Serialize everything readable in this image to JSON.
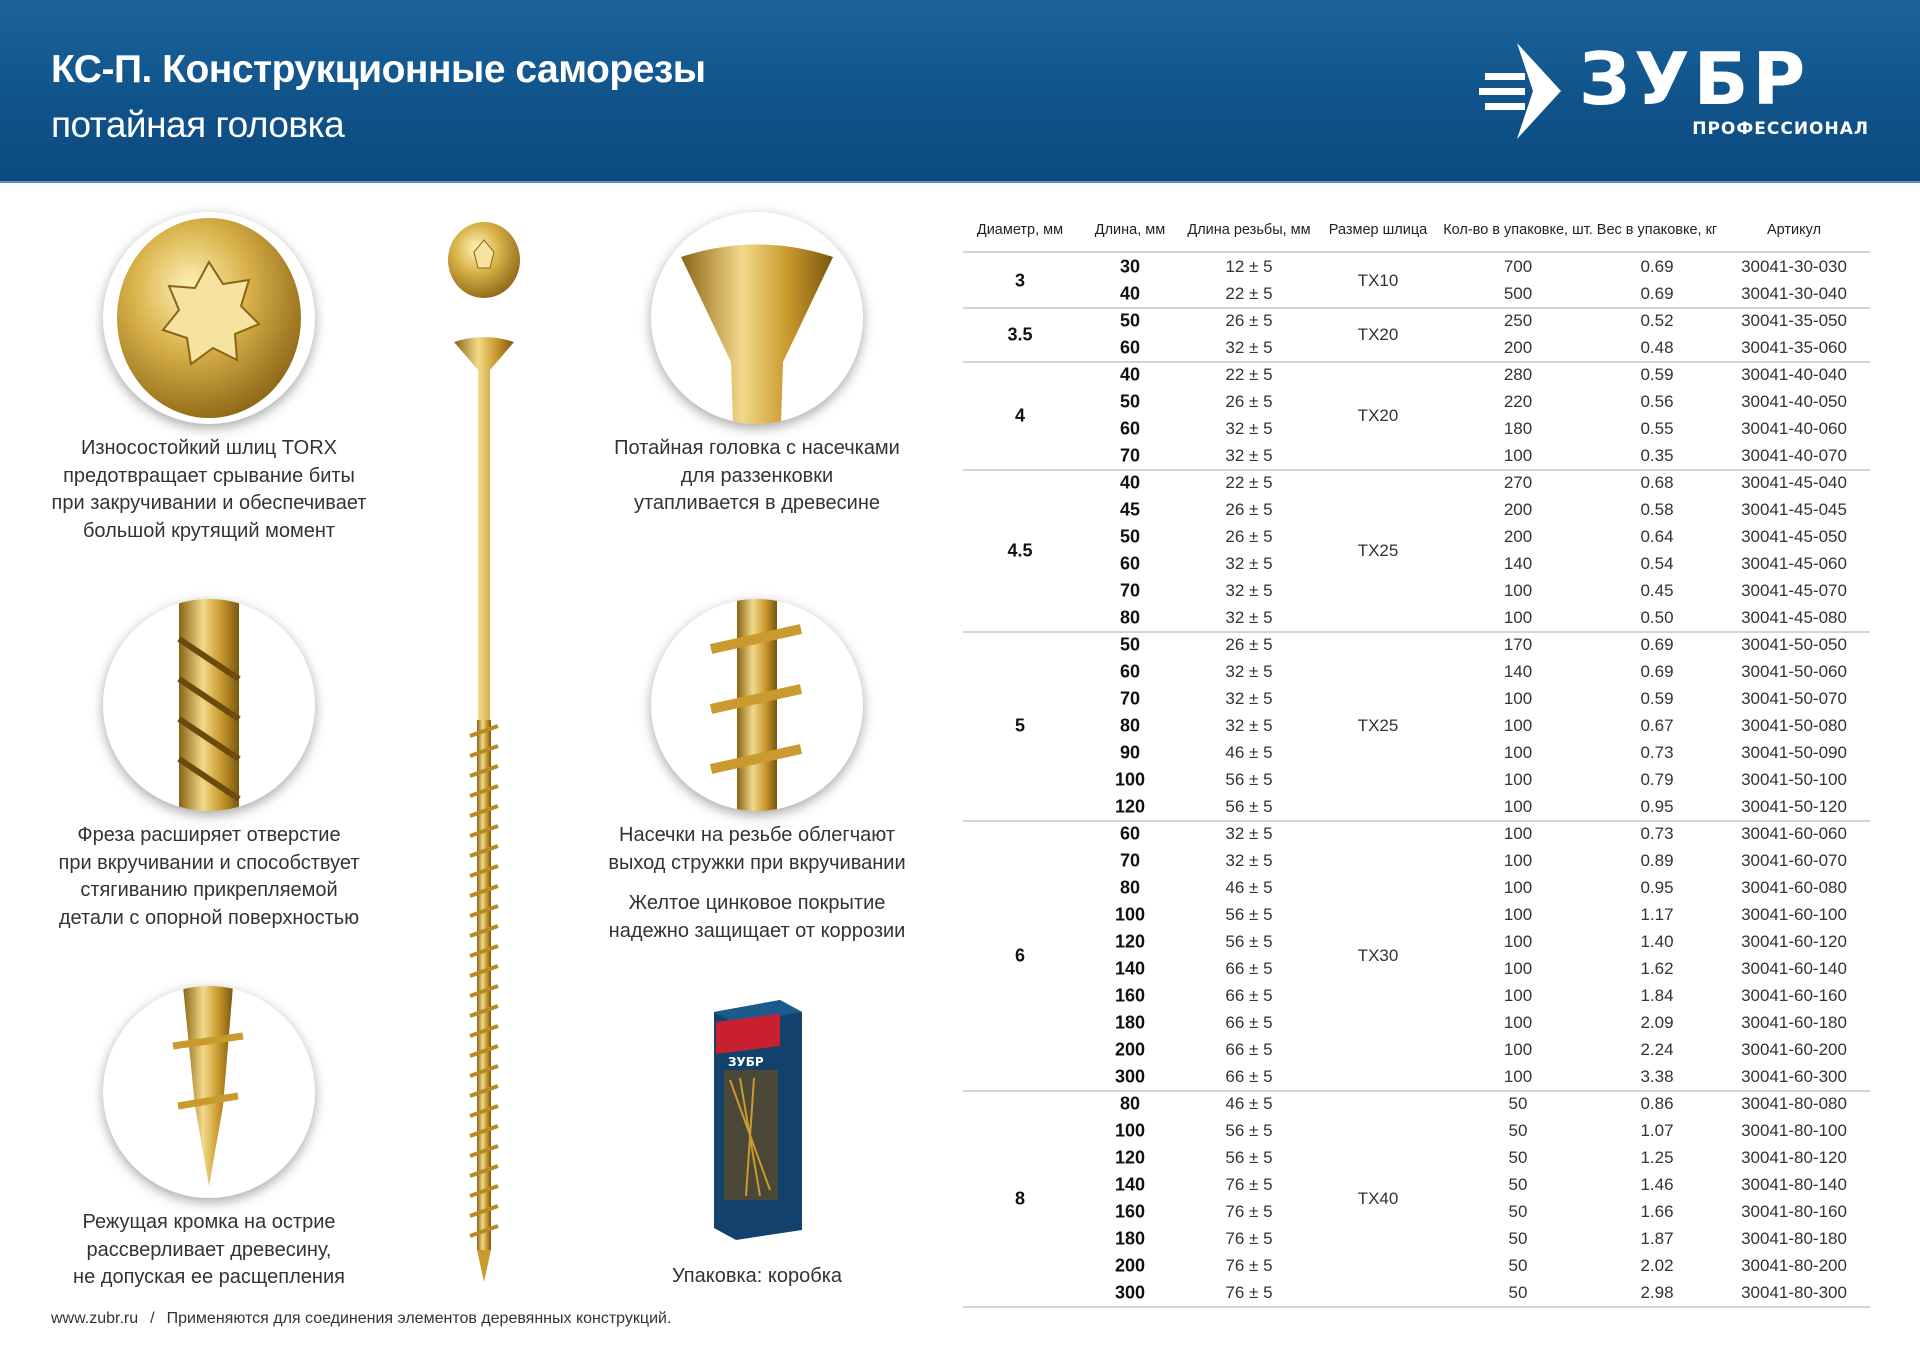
{
  "header": {
    "title": "КС-П. Конструкционные саморезы",
    "subtitle": "потайная головка",
    "logo_text": "ЗУБР",
    "logo_subtext": "ПРОФЕССИОНАЛ"
  },
  "colors": {
    "header_blue": "#0f5289",
    "gold": "#c9a23a",
    "text": "#333333"
  },
  "features": {
    "torx": [
      "Износостойкий шлиц TORX",
      "предотвращает срывание биты",
      "при закручивании и обеспечивает",
      "большой крутящий момент"
    ],
    "head": [
      "Потайная головка с насечками",
      "для раззенковки",
      "утапливается в древесине"
    ],
    "mill": [
      "Фреза расширяет отверстие",
      "при вкручивании и способствует",
      "стягиванию прикрепляемой",
      "детали с опорной поверхностью"
    ],
    "notches": [
      "Насечки на резьбе облегчают",
      "выход стружки при вкручивании"
    ],
    "coating": [
      "Желтое цинковое покрытие",
      "надежно защищает от коррозии"
    ],
    "tip": [
      "Режущая кромка на острие",
      "рассверливает древесину,",
      "не допуская ее расщепления"
    ],
    "package": "Упаковка: коробка"
  },
  "footer": {
    "site": "www.zubr.ru",
    "separator": "/",
    "note": "Применяются для соединения элементов деревянных конструкций."
  },
  "table": {
    "headers": [
      "Диаметр, мм",
      "Длина, мм",
      "Длина резьбы, мм",
      "Размер шлица",
      "Кол-во в упаковке, шт.",
      "Вес в упаковке, кг",
      "Артикул"
    ],
    "groups": [
      {
        "diameter": "3",
        "slot": "TX10",
        "rows": [
          [
            "30",
            "12 ± 5",
            "700",
            "0.69",
            "30041-30-030"
          ],
          [
            "40",
            "22 ± 5",
            "500",
            "0.69",
            "30041-30-040"
          ]
        ]
      },
      {
        "diameter": "3.5",
        "slot": "TX20",
        "rows": [
          [
            "50",
            "26 ± 5",
            "250",
            "0.52",
            "30041-35-050"
          ],
          [
            "60",
            "32 ± 5",
            "200",
            "0.48",
            "30041-35-060"
          ]
        ]
      },
      {
        "diameter": "4",
        "slot": "TX20",
        "rows": [
          [
            "40",
            "22 ± 5",
            "280",
            "0.59",
            "30041-40-040"
          ],
          [
            "50",
            "26 ± 5",
            "220",
            "0.56",
            "30041-40-050"
          ],
          [
            "60",
            "32 ± 5",
            "180",
            "0.55",
            "30041-40-060"
          ],
          [
            "70",
            "32 ± 5",
            "100",
            "0.35",
            "30041-40-070"
          ]
        ]
      },
      {
        "diameter": "4.5",
        "slot": "TX25",
        "rows": [
          [
            "40",
            "22 ± 5",
            "270",
            "0.68",
            "30041-45-040"
          ],
          [
            "45",
            "26 ± 5",
            "200",
            "0.58",
            "30041-45-045"
          ],
          [
            "50",
            "26 ± 5",
            "200",
            "0.64",
            "30041-45-050"
          ],
          [
            "60",
            "32 ± 5",
            "140",
            "0.54",
            "30041-45-060"
          ],
          [
            "70",
            "32 ± 5",
            "100",
            "0.45",
            "30041-45-070"
          ],
          [
            "80",
            "32 ± 5",
            "100",
            "0.50",
            "30041-45-080"
          ]
        ]
      },
      {
        "diameter": "5",
        "slot": "TX25",
        "rows": [
          [
            "50",
            "26 ± 5",
            "170",
            "0.69",
            "30041-50-050"
          ],
          [
            "60",
            "32 ± 5",
            "140",
            "0.69",
            "30041-50-060"
          ],
          [
            "70",
            "32 ± 5",
            "100",
            "0.59",
            "30041-50-070"
          ],
          [
            "80",
            "32 ± 5",
            "100",
            "0.67",
            "30041-50-080"
          ],
          [
            "90",
            "46 ± 5",
            "100",
            "0.73",
            "30041-50-090"
          ],
          [
            "100",
            "56 ± 5",
            "100",
            "0.79",
            "30041-50-100"
          ],
          [
            "120",
            "56 ± 5",
            "100",
            "0.95",
            "30041-50-120"
          ]
        ]
      },
      {
        "diameter": "6",
        "slot": "TX30",
        "rows": [
          [
            "60",
            "32 ± 5",
            "100",
            "0.73",
            "30041-60-060"
          ],
          [
            "70",
            "32 ± 5",
            "100",
            "0.89",
            "30041-60-070"
          ],
          [
            "80",
            "46 ± 5",
            "100",
            "0.95",
            "30041-60-080"
          ],
          [
            "100",
            "56 ± 5",
            "100",
            "1.17",
            "30041-60-100"
          ],
          [
            "120",
            "56 ± 5",
            "100",
            "1.40",
            "30041-60-120"
          ],
          [
            "140",
            "66 ± 5",
            "100",
            "1.62",
            "30041-60-140"
          ],
          [
            "160",
            "66 ± 5",
            "100",
            "1.84",
            "30041-60-160"
          ],
          [
            "180",
            "66 ± 5",
            "100",
            "2.09",
            "30041-60-180"
          ],
          [
            "200",
            "66 ± 5",
            "100",
            "2.24",
            "30041-60-200"
          ],
          [
            "300",
            "66 ± 5",
            "100",
            "3.38",
            "30041-60-300"
          ]
        ]
      },
      {
        "diameter": "8",
        "slot": "TX40",
        "rows": [
          [
            "80",
            "46 ± 5",
            "50",
            "0.86",
            "30041-80-080"
          ],
          [
            "100",
            "56 ± 5",
            "50",
            "1.07",
            "30041-80-100"
          ],
          [
            "120",
            "56 ± 5",
            "50",
            "1.25",
            "30041-80-120"
          ],
          [
            "140",
            "76 ± 5",
            "50",
            "1.46",
            "30041-80-140"
          ],
          [
            "160",
            "76 ± 5",
            "50",
            "1.66",
            "30041-80-160"
          ],
          [
            "180",
            "76 ± 5",
            "50",
            "1.87",
            "30041-80-180"
          ],
          [
            "200",
            "76 ± 5",
            "50",
            "2.02",
            "30041-80-200"
          ],
          [
            "300",
            "76 ± 5",
            "50",
            "2.98",
            "30041-80-300"
          ]
        ]
      }
    ]
  }
}
